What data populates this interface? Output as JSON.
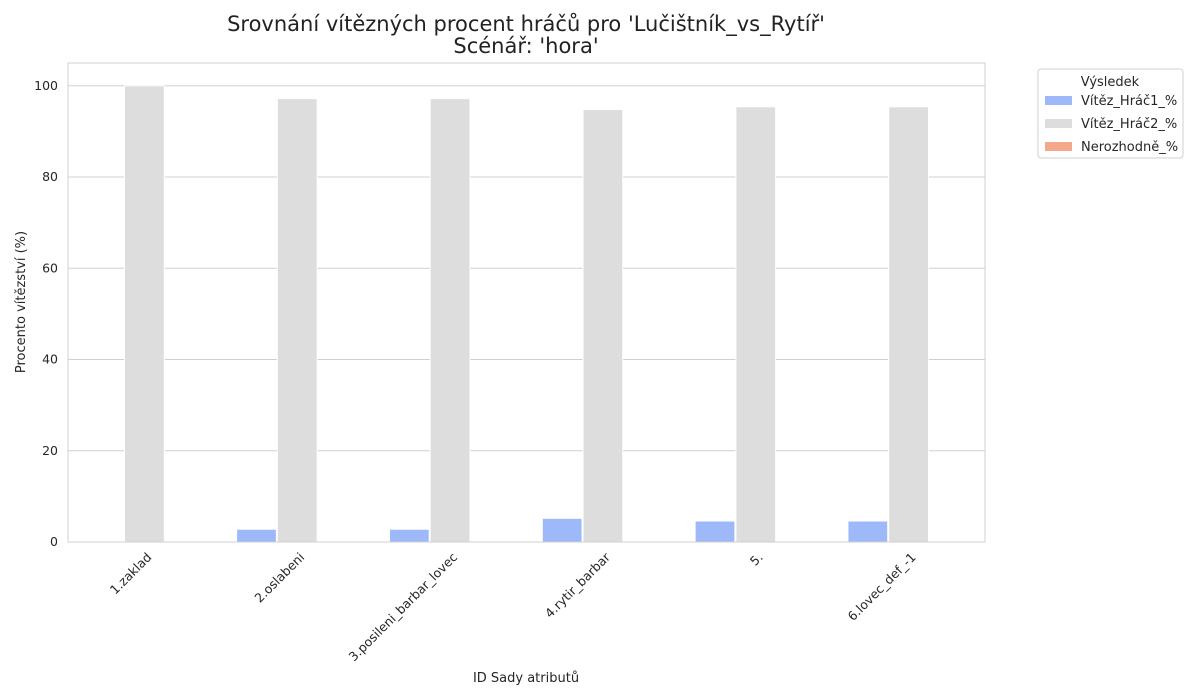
{
  "chart_data": {
    "type": "bar",
    "title": "Srovnání vítězných procent hráčů pro 'Lučištník_vs_Rytíř'",
    "subtitle": "Scénář: 'hora'",
    "xlabel": "ID Sady atributů",
    "ylabel": "Procento vítězství (%)",
    "categories": [
      "1.zaklad",
      "2.oslabeni",
      "3.posileni_barbar_lovec",
      "4.rytir_barbar",
      "5.",
      "6.lovec_def_-1"
    ],
    "series": [
      {
        "name": "Vítěz_Hráč1_%",
        "color": "#9db9f9",
        "values": [
          0,
          2.8,
          2.8,
          5.2,
          4.6,
          4.6
        ]
      },
      {
        "name": "Vítěz_Hráč2_%",
        "color": "#dddddd",
        "values": [
          100,
          97.2,
          97.2,
          94.8,
          95.4,
          95.4
        ]
      },
      {
        "name": "Nerozhodně_%",
        "color": "#f4a88a",
        "values": [
          0,
          0,
          0,
          0,
          0,
          0
        ]
      }
    ],
    "ylim": [
      0,
      105
    ],
    "yticks": [
      0,
      20,
      40,
      60,
      80,
      100
    ],
    "grid": true,
    "legend": {
      "title": "Výsledek",
      "placement": "outside-top-right"
    }
  }
}
